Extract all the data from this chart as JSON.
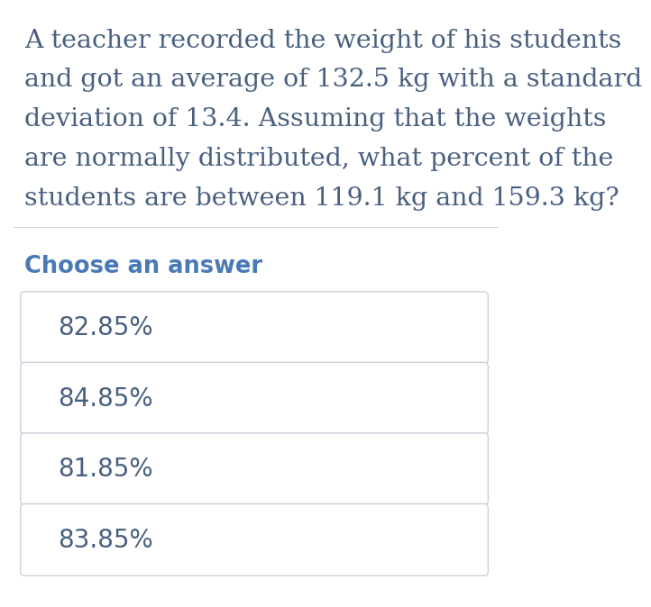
{
  "question_text_lines": [
    "A teacher recorded the weight of his students",
    "and got an average of 132.5 kg with a standard",
    "deviation of 13.4. Assuming that the weights",
    "are normally distributed, what percent of the",
    "students are between 119.1 kg and 159.3 kg?"
  ],
  "choose_label": "Choose an answer",
  "choices": [
    "82.85%",
    "84.85%",
    "81.85%",
    "83.85%"
  ],
  "bg_color": "#ffffff",
  "question_color": "#4a6080",
  "choose_color": "#4a7ab5",
  "choice_text_color": "#4a6080",
  "choice_bg_color": "#ffffff",
  "choice_border_color": "#c8d0dc",
  "divider_color": "#d0d5de",
  "question_fontsize": 20.5,
  "choose_fontsize": 18.5,
  "choice_fontsize": 20,
  "fig_width": 7.06,
  "fig_height": 8.5
}
